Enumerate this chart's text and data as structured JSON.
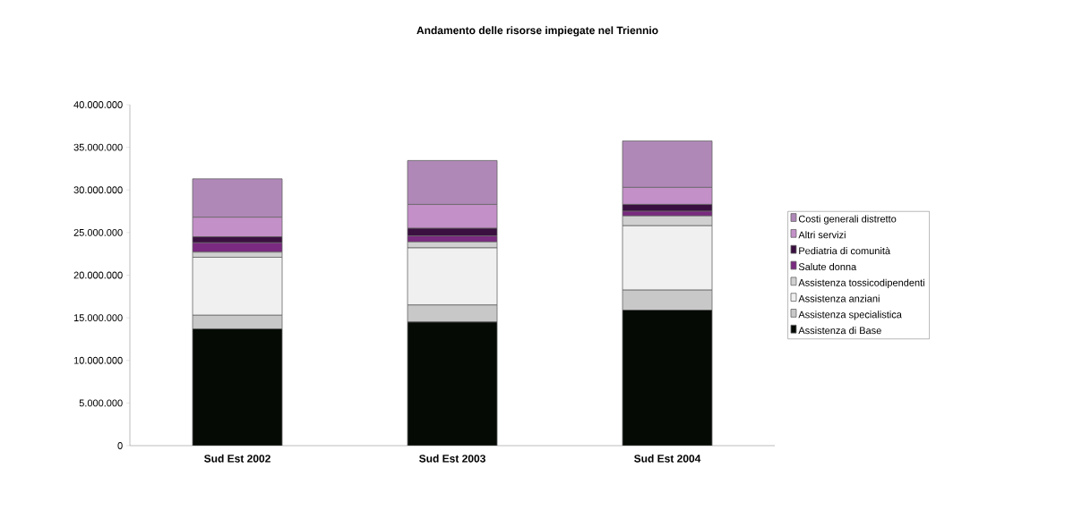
{
  "chart_data": {
    "type": "bar",
    "stacked": true,
    "title": "Andamento delle risorse impiegate nel Triennio",
    "categories": [
      "Sud Est 2002",
      "Sud Est 2003",
      "Sud Est 2004"
    ],
    "series": [
      {
        "name": "Assistenza di Base",
        "color": "#050a05",
        "values": [
          13700000,
          14500000,
          15900000
        ]
      },
      {
        "name": "Assistenza specialistica",
        "color": "#c8c8c8",
        "values": [
          1600000,
          2000000,
          2350000
        ]
      },
      {
        "name": "Assistenza anziani",
        "color": "#f0f0f0",
        "values": [
          6800000,
          6700000,
          7550000
        ]
      },
      {
        "name": "Assistenza tossicodipendenti",
        "color": "#d0d0d0",
        "values": [
          600000,
          700000,
          1150000
        ]
      },
      {
        "name": "Salute donna",
        "color": "#7a2a80",
        "values": [
          1100000,
          700000,
          550000
        ]
      },
      {
        "name": "Pediatria di comunità",
        "color": "#3a1040",
        "values": [
          700000,
          900000,
          800000
        ]
      },
      {
        "name": "Altri servizi",
        "color": "#c490c8",
        "values": [
          2300000,
          2800000,
          2000000
        ]
      },
      {
        "name": "Costi generali distretto",
        "color": "#b088b8",
        "values": [
          4500000,
          5150000,
          5450000
        ]
      }
    ],
    "ylim": [
      0,
      40000000
    ],
    "yticks": [
      {
        "value": 0,
        "label": "0"
      },
      {
        "value": 5000000,
        "label": "5.000.000"
      },
      {
        "value": 10000000,
        "label": "10.000.000"
      },
      {
        "value": 15000000,
        "label": "15.000.000"
      },
      {
        "value": 20000000,
        "label": "20.000.000"
      },
      {
        "value": 25000000,
        "label": "25.000.000"
      },
      {
        "value": 30000000,
        "label": "30.000.000"
      },
      {
        "value": 35000000,
        "label": "35.000.000"
      },
      {
        "value": 40000000,
        "label": "40.000.000"
      }
    ],
    "grid": false,
    "legend": "right"
  }
}
